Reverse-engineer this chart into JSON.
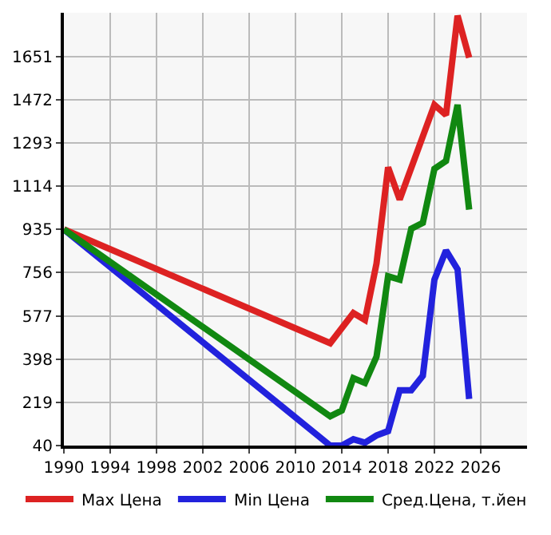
{
  "chart_data": {
    "type": "line",
    "xlim": [
      1990,
      2030
    ],
    "ylim": [
      40,
      1832
    ],
    "xticks": [
      1990,
      1994,
      1998,
      2002,
      2006,
      2010,
      2014,
      2018,
      2022,
      2026
    ],
    "yticks": [
      40,
      219,
      398,
      577,
      756,
      935,
      1114,
      1293,
      1472,
      1651
    ],
    "grid": true,
    "legend": "bottom",
    "marker": "none",
    "line_style": "solid",
    "series": [
      {
        "name": "Max Цена",
        "color": "#dd2222",
        "x": [
          1990,
          2013,
          2015,
          2016,
          2017,
          2018,
          2019,
          2022,
          2023,
          2024,
          2025
        ],
        "values": [
          935,
          464,
          589,
          560,
          794,
          1192,
          1059,
          1451,
          1409,
          1820,
          1646
        ]
      },
      {
        "name": "Min Цена",
        "color": "#2222dd",
        "x": [
          1990,
          2013,
          2014,
          2015,
          2016,
          2017,
          2018,
          2019,
          2020,
          2021,
          2022,
          2023,
          2024,
          2025
        ],
        "values": [
          935,
          40,
          40,
          66,
          52,
          82,
          100,
          269,
          269,
          329,
          727,
          848,
          770,
          233
        ]
      },
      {
        "name": "Сред.Цена, т.йен",
        "color": "#118811",
        "x": [
          1990,
          2013,
          2014,
          2015,
          2016,
          2017,
          2018,
          2019,
          2020,
          2021,
          2022,
          2023,
          2024,
          2025
        ],
        "values": [
          935,
          161,
          185,
          319,
          299,
          408,
          741,
          727,
          938,
          962,
          1186,
          1218,
          1451,
          1017
        ]
      }
    ]
  }
}
